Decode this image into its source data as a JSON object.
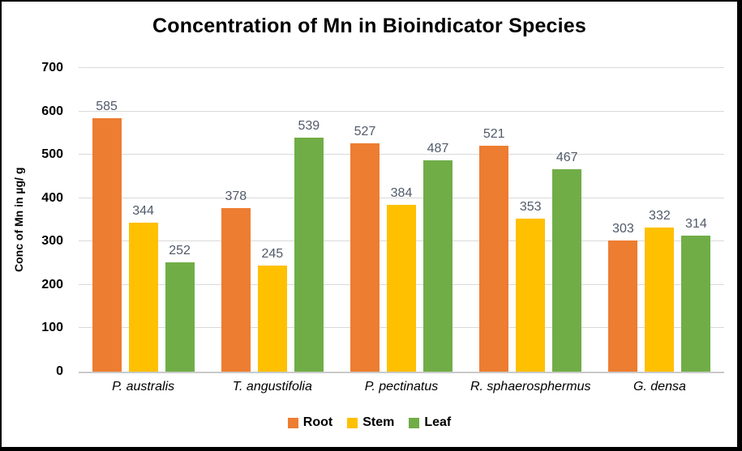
{
  "chart_data": {
    "type": "bar",
    "title": "Concentration of Mn in Bioindicator Species",
    "xlabel": "",
    "ylabel": "Conc of Mn in µg/ g",
    "ylim": [
      0,
      700
    ],
    "yticks": [
      0,
      100,
      200,
      300,
      400,
      500,
      600,
      700
    ],
    "grid": true,
    "legend_position": "bottom",
    "categories": [
      "P. australis",
      "T. angustifolia",
      "P. pectinatus",
      "R. sphaerosphermus",
      "G. densa"
    ],
    "series": [
      {
        "name": "Root",
        "color": "#ED7D31",
        "values": [
          585,
          378,
          527,
          521,
          303
        ]
      },
      {
        "name": "Stem",
        "color": "#FFC000",
        "values": [
          344,
          245,
          384,
          353,
          332
        ]
      },
      {
        "name": "Leaf",
        "color": "#70AD47",
        "values": [
          252,
          539,
          487,
          467,
          314
        ]
      }
    ],
    "colors": {
      "data_label": "#505a6a",
      "gridline": "#d9d9d9",
      "axis_line": "#c9c9c9",
      "title": "#000000",
      "border": "#000000"
    }
  }
}
